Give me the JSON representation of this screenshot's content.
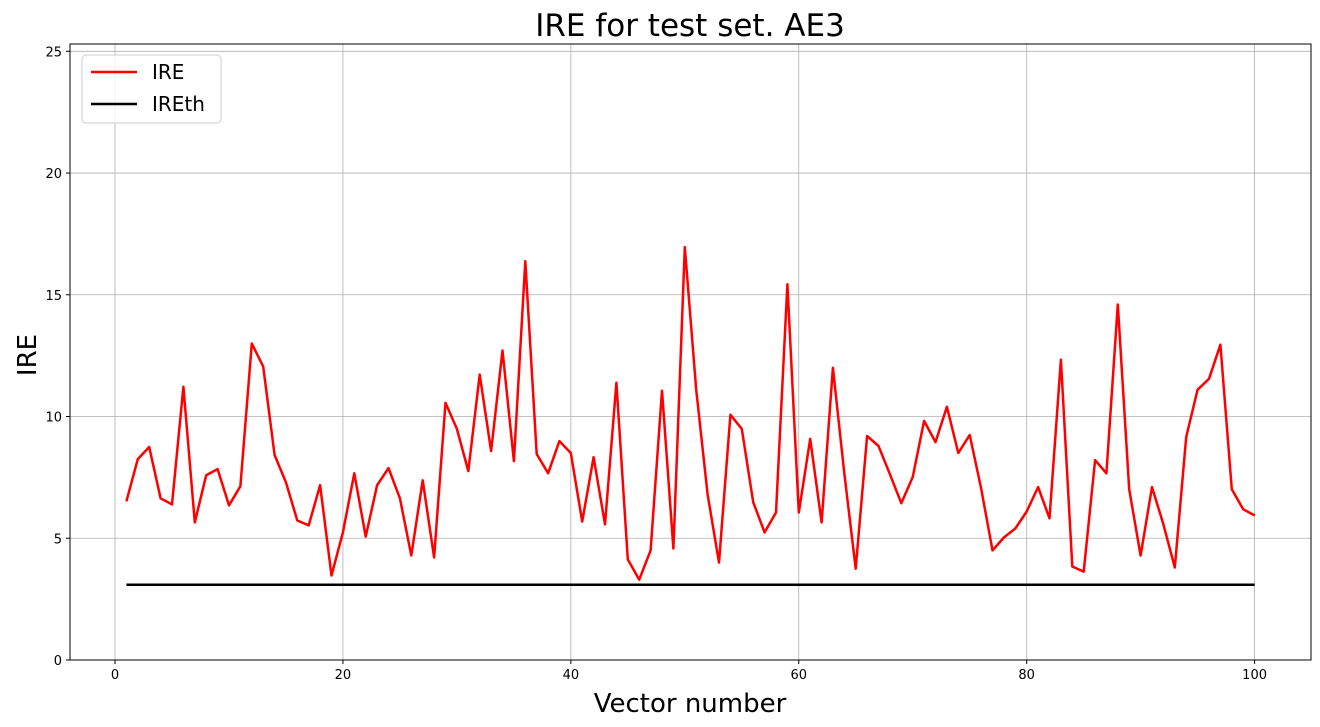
{
  "chart_data": {
    "type": "line",
    "title": "IRE for test set. AE3",
    "xlabel": "Vector number",
    "ylabel": "IRE",
    "xlim": [
      -3.95,
      104.95
    ],
    "ylim": [
      0,
      25.3
    ],
    "xticks": [
      0,
      20,
      40,
      60,
      80,
      100
    ],
    "yticks": [
      0,
      5,
      10,
      15,
      20,
      25
    ],
    "grid": true,
    "legend_position": "top-left",
    "x": [
      1,
      2,
      3,
      4,
      5,
      6,
      7,
      8,
      9,
      10,
      11,
      12,
      13,
      14,
      15,
      16,
      17,
      18,
      19,
      20,
      21,
      22,
      23,
      24,
      25,
      26,
      27,
      28,
      29,
      30,
      31,
      32,
      33,
      34,
      35,
      36,
      37,
      38,
      39,
      40,
      41,
      42,
      43,
      44,
      45,
      46,
      47,
      48,
      49,
      50,
      51,
      52,
      53,
      54,
      55,
      56,
      57,
      58,
      59,
      60,
      61,
      62,
      63,
      64,
      65,
      66,
      67,
      68,
      69,
      70,
      71,
      72,
      73,
      74,
      75,
      76,
      77,
      78,
      79,
      80,
      81,
      82,
      83,
      84,
      85,
      86,
      87,
      88,
      89,
      90,
      91,
      92,
      93,
      94,
      95,
      96,
      97,
      98,
      99,
      100
    ],
    "series": [
      {
        "name": "IRE",
        "color": "#ff0000",
        "values": [
          6.52,
          8.25,
          8.75,
          6.64,
          6.39,
          11.22,
          5.65,
          7.59,
          7.84,
          6.35,
          7.14,
          13.0,
          12.05,
          8.42,
          7.3,
          5.73,
          5.53,
          7.18,
          3.47,
          5.24,
          7.67,
          5.07,
          7.18,
          7.88,
          6.64,
          4.29,
          7.38,
          4.21,
          10.56,
          9.49,
          7.76,
          11.72,
          8.58,
          12.71,
          8.17,
          16.38,
          8.46,
          7.67,
          8.99,
          8.5,
          5.69,
          8.33,
          5.57,
          11.39,
          4.13,
          3.3,
          4.5,
          11.06,
          4.58,
          16.96,
          11.1,
          6.8,
          4.0,
          10.07,
          9.49,
          6.48,
          5.24,
          6.06,
          15.43,
          6.06,
          9.08,
          5.65,
          12.0,
          7.67,
          3.75,
          9.2,
          8.79,
          7.63,
          6.44,
          7.51,
          9.82,
          8.95,
          10.4,
          8.5,
          9.24,
          7.05,
          4.5,
          5.03,
          5.4,
          6.1,
          7.1,
          5.82,
          12.33,
          3.84,
          3.63,
          8.21,
          7.67,
          14.6,
          7.01,
          4.29,
          7.1,
          5.57,
          3.8,
          9.16,
          11.1,
          11.55,
          12.95,
          7.01,
          6.19,
          5.94
        ]
      },
      {
        "name": "IREth",
        "color": "#000000",
        "constant": 3.09
      }
    ]
  }
}
